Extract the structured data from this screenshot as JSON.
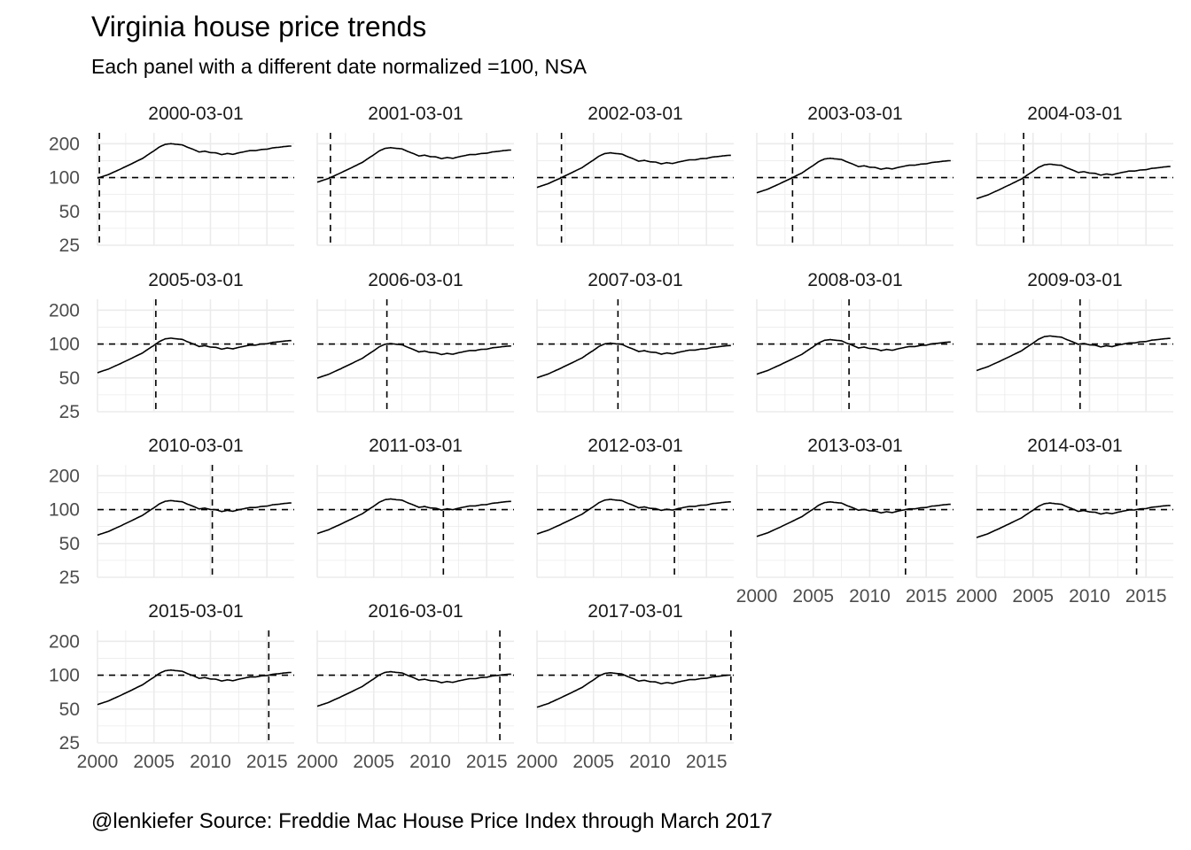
{
  "title": "Virginia house price trends",
  "subtitle": "Each panel with a different date normalized =100, NSA",
  "caption": "@lenkiefer Source: Freddie Mac House Price Index through March 2017",
  "chart_data": {
    "type": "line",
    "y_scale": "log",
    "ylim": [
      25,
      250
    ],
    "y_ticks": [
      25,
      50,
      100,
      200
    ],
    "y_tick_labels": [
      "25",
      "50",
      "100",
      "200"
    ],
    "xlim": [
      "2000-01-01",
      "2017-06-01"
    ],
    "x_ticks": [
      2000,
      2005,
      2010,
      2015
    ],
    "x_tick_labels": [
      "2000",
      "2005",
      "2010",
      "2015"
    ],
    "reference_line_y": 100,
    "grid": true,
    "colors": {
      "line": "#000000",
      "grid": "#ebebeb",
      "strip_text": "#1a1a1a",
      "axis_text": "#4d4d4d"
    },
    "base_series": {
      "x": [
        2000.0,
        2001.0,
        2002.0,
        2003.0,
        2004.0,
        2005.0,
        2005.5,
        2006.0,
        2006.5,
        2007.0,
        2007.5,
        2008.0,
        2008.5,
        2009.0,
        2009.5,
        2010.0,
        2010.5,
        2011.0,
        2011.5,
        2012.0,
        2012.5,
        2013.0,
        2013.5,
        2014.0,
        2014.5,
        2015.0,
        2015.5,
        2016.0,
        2016.5,
        2017.0,
        2017.2
      ],
      "values": [
        100,
        108,
        120,
        134,
        150,
        175,
        190,
        200,
        203,
        200,
        198,
        188,
        180,
        171,
        174,
        169,
        168,
        162,
        166,
        163,
        168,
        172,
        176,
        176,
        180,
        181,
        186,
        188,
        191,
        193,
        193
      ]
    },
    "panels": [
      {
        "label": "2000-03-01",
        "norm_date": "2000-03-01"
      },
      {
        "label": "2001-03-01",
        "norm_date": "2001-03-01"
      },
      {
        "label": "2002-03-01",
        "norm_date": "2002-03-01"
      },
      {
        "label": "2003-03-01",
        "norm_date": "2003-03-01"
      },
      {
        "label": "2004-03-01",
        "norm_date": "2004-03-01"
      },
      {
        "label": "2005-03-01",
        "norm_date": "2005-03-01"
      },
      {
        "label": "2006-03-01",
        "norm_date": "2006-03-01"
      },
      {
        "label": "2007-03-01",
        "norm_date": "2007-03-01"
      },
      {
        "label": "2008-03-01",
        "norm_date": "2008-03-01"
      },
      {
        "label": "2009-03-01",
        "norm_date": "2009-03-01"
      },
      {
        "label": "2010-03-01",
        "norm_date": "2010-03-01"
      },
      {
        "label": "2011-03-01",
        "norm_date": "2011-03-01"
      },
      {
        "label": "2012-03-01",
        "norm_date": "2012-03-01"
      },
      {
        "label": "2013-03-01",
        "norm_date": "2013-03-01"
      },
      {
        "label": "2014-03-01",
        "norm_date": "2014-03-01"
      },
      {
        "label": "2015-03-01",
        "norm_date": "2015-03-01"
      },
      {
        "label": "2016-03-01",
        "norm_date": "2016-03-01"
      },
      {
        "label": "2017-03-01",
        "norm_date": "2017-03-01"
      }
    ]
  }
}
